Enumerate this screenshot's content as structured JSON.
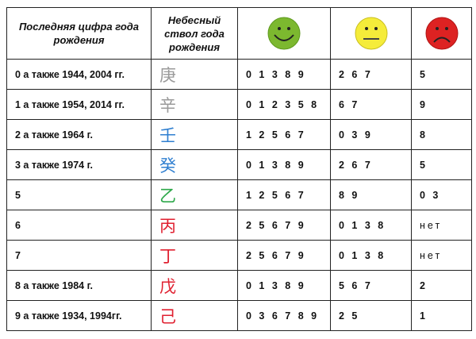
{
  "header": {
    "col1": "Последняя цифра года рождения",
    "col2": "Небесный ствол года рождения",
    "faces": [
      {
        "icon": "smiling-face-icon",
        "color": "#7cb82f"
      },
      {
        "icon": "neutral-face-icon",
        "color": "#f5ec3a"
      },
      {
        "icon": "sad-face-icon",
        "color": "#dd2222"
      }
    ]
  },
  "rows": [
    {
      "digit": "0 а также 1944, 2004 гг.",
      "stem": "庚",
      "stem_color": "#9a9a9a",
      "good": "0 1 3 8 9",
      "neutral": "2 6 7",
      "bad": "5"
    },
    {
      "digit": "1 а также 1954, 2014 гг.",
      "stem": "辛",
      "stem_color": "#9a9a9a",
      "good": "0 1 2 3 5 8",
      "neutral": "6 7",
      "bad": "9"
    },
    {
      "digit": "2 а также 1964 г.",
      "stem": "壬",
      "stem_color": "#2f7fd0",
      "good": "1 2 5 6 7",
      "neutral": "0 3 9",
      "bad": "8"
    },
    {
      "digit": "3 а также 1974 г.",
      "stem": "癸",
      "stem_color": "#2f7fd0",
      "good": "0 1 3 8 9",
      "neutral": "2 6 7",
      "bad": "5"
    },
    {
      "digit": "5",
      "stem": "乙",
      "stem_color": "#2ea84a",
      "good": "1 2 5 6 7",
      "neutral": "8 9",
      "bad": "0 3"
    },
    {
      "digit": "6",
      "stem": "丙",
      "stem_color": "#e02030",
      "good": "2 5 6 7 9",
      "neutral": "0 1 3 8",
      "bad": "нет"
    },
    {
      "digit": "7",
      "stem": "丁",
      "stem_color": "#e02030",
      "good": "2 5 6 7 9",
      "neutral": "0 1 3 8",
      "bad": "нет"
    },
    {
      "digit": "8  а также 1984 г.",
      "stem": "戊",
      "stem_color": "#e02030",
      "good": "0 1 3 8 9",
      "neutral": "5 6 7",
      "bad": "2"
    },
    {
      "digit": "9  а также 1934, 1994гг.",
      "stem": "己",
      "stem_color": "#e02030",
      "good": "0 3 6 7 8 9",
      "neutral": "2 5",
      "bad": "1"
    }
  ]
}
